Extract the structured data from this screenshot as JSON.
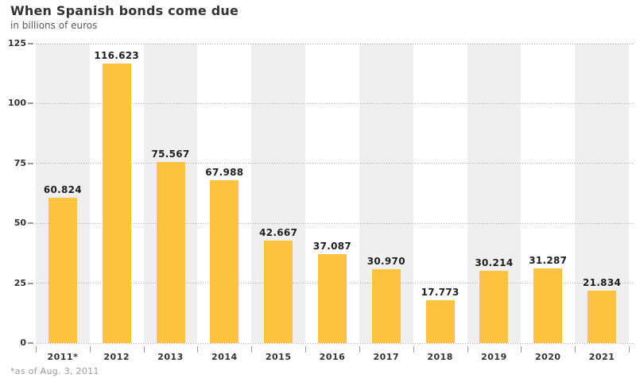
{
  "chart_data": {
    "type": "bar",
    "title": "When Spanish bonds come due",
    "subtitle": "in billions of euros",
    "footnote": "*as of Aug. 3, 2011",
    "categories": [
      "2011*",
      "2012",
      "2013",
      "2014",
      "2015",
      "2016",
      "2017",
      "2018",
      "2019",
      "2020",
      "2021"
    ],
    "values": [
      60.824,
      116.623,
      75.567,
      67.988,
      42.667,
      37.087,
      30.97,
      17.773,
      30.214,
      31.287,
      21.834
    ],
    "value_labels": [
      "60.824",
      "116.623",
      "75.567",
      "67.988",
      "42.667",
      "37.087",
      "30.970",
      "17.773",
      "30.214",
      "31.287",
      "21.834"
    ],
    "xlabel": "",
    "ylabel": "",
    "ylim": [
      0,
      125
    ],
    "yticks": [
      0,
      25,
      50,
      75,
      100,
      125
    ],
    "grid": "horizontal dotted lines at each y tick",
    "legend": "none",
    "layout_hints": "alternating light gray vertical background bands behind columns 1,3,5,7,9,11; value printed in bold above each bar; tick marks between category columns",
    "colors": {
      "bar": "#FDC33E",
      "band": "#EFEFEF",
      "gridline": "#A9A9A9",
      "axis_text": "#333333",
      "value_text": "#1F1F1F",
      "footnote_text": "#9A9A9A",
      "title_text": "#333333",
      "background": "#FFFFFF"
    }
  }
}
